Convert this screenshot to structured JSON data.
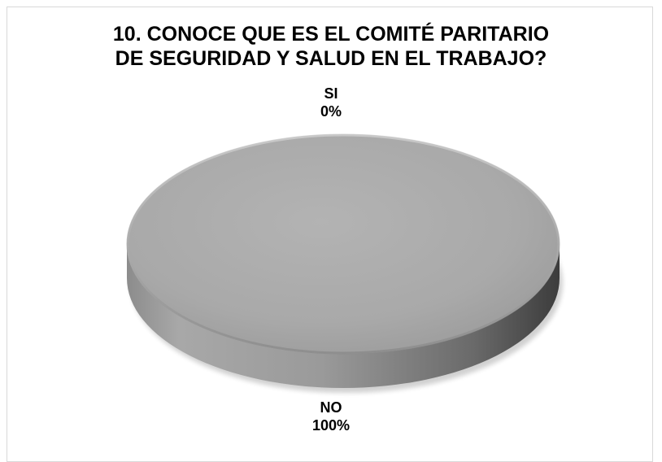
{
  "chart_data": {
    "type": "pie",
    "title": "10. CONOCE QUE ES EL COMITÉ PARITARIO DE SEGURIDAD Y SALUD EN EL TRABAJO?",
    "title_lines": [
      "10. CONOCE QUE ES EL COMITÉ PARITARIO",
      "DE SEGURIDAD Y SALUD EN EL TRABAJO?"
    ],
    "categories": [
      "SI",
      "NO"
    ],
    "values": [
      0,
      100
    ],
    "data_labels": [
      "0%",
      "100%"
    ],
    "colors": [
      "#a6a6a6",
      "#a6a6a6"
    ],
    "style": "3d",
    "legend": "none"
  }
}
